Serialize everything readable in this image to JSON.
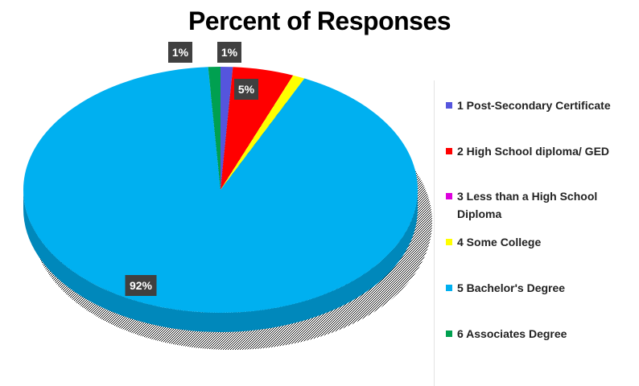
{
  "chart_data": {
    "type": "pie",
    "title": "Percent of Responses",
    "categories": [
      "1 Post-Secondary Certificate",
      "2 High School diploma/ GED",
      "3 Less than a High School Diploma",
      "4 Some College",
      "5 Bachelor's Degree",
      "6 Associates Degree"
    ],
    "values": [
      1,
      5,
      0,
      1,
      92,
      1
    ],
    "data_labels": [
      "1%",
      "5%",
      "",
      "",
      "92%",
      "1%"
    ],
    "colors": [
      "#5555dd",
      "#ff0000",
      "#dd00dd",
      "#ffff00",
      "#00b0f0",
      "#00a050"
    ],
    "side_colors": [
      "#3a3aa6",
      "#b00000",
      "#a000a0",
      "#c8c800",
      "#0088bb",
      "#007535"
    ],
    "legend_position": "right",
    "three_d": true
  }
}
